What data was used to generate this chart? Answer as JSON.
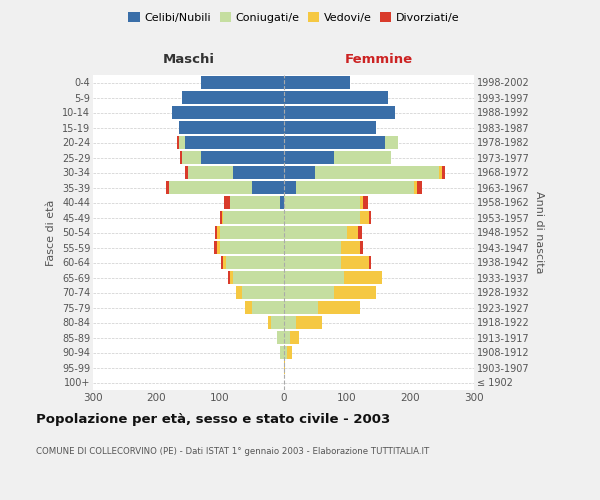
{
  "age_groups": [
    "100+",
    "95-99",
    "90-94",
    "85-89",
    "80-84",
    "75-79",
    "70-74",
    "65-69",
    "60-64",
    "55-59",
    "50-54",
    "45-49",
    "40-44",
    "35-39",
    "30-34",
    "25-29",
    "20-24",
    "15-19",
    "10-14",
    "5-9",
    "0-4"
  ],
  "birth_years": [
    "≤ 1902",
    "1903-1907",
    "1908-1912",
    "1913-1917",
    "1918-1922",
    "1923-1927",
    "1928-1932",
    "1933-1937",
    "1938-1942",
    "1943-1947",
    "1948-1952",
    "1953-1957",
    "1958-1962",
    "1963-1967",
    "1968-1972",
    "1973-1977",
    "1978-1982",
    "1983-1987",
    "1988-1992",
    "1993-1997",
    "1998-2002"
  ],
  "males": {
    "celibi": [
      0,
      0,
      0,
      0,
      0,
      0,
      0,
      0,
      0,
      0,
      0,
      0,
      5,
      50,
      80,
      130,
      155,
      165,
      175,
      160,
      130
    ],
    "coniugati": [
      0,
      0,
      5,
      10,
      20,
      50,
      65,
      80,
      90,
      100,
      100,
      95,
      80,
      130,
      70,
      30,
      10,
      0,
      0,
      0,
      0
    ],
    "vedovi": [
      0,
      0,
      0,
      0,
      5,
      10,
      10,
      5,
      5,
      5,
      5,
      2,
      0,
      0,
      0,
      0,
      0,
      0,
      0,
      0,
      0
    ],
    "divorziati": [
      0,
      0,
      0,
      0,
      0,
      0,
      0,
      2,
      3,
      5,
      3,
      3,
      8,
      5,
      5,
      3,
      2,
      0,
      0,
      0,
      0
    ]
  },
  "females": {
    "nubili": [
      0,
      0,
      0,
      0,
      0,
      0,
      0,
      0,
      0,
      0,
      0,
      0,
      0,
      20,
      50,
      80,
      160,
      145,
      175,
      165,
      105
    ],
    "coniugate": [
      0,
      0,
      5,
      10,
      20,
      55,
      80,
      95,
      90,
      90,
      100,
      120,
      120,
      185,
      195,
      90,
      20,
      0,
      0,
      0,
      0
    ],
    "vedove": [
      0,
      2,
      8,
      15,
      40,
      65,
      65,
      60,
      45,
      30,
      18,
      15,
      5,
      5,
      5,
      0,
      0,
      0,
      0,
      0,
      0
    ],
    "divorziate": [
      0,
      0,
      0,
      0,
      0,
      0,
      0,
      0,
      3,
      5,
      5,
      3,
      8,
      8,
      5,
      0,
      0,
      0,
      0,
      0,
      0
    ]
  },
  "colors": {
    "celibi": "#3a6ea8",
    "coniugati": "#c5dea0",
    "vedovi": "#f5c842",
    "divorziati": "#d93b2b"
  },
  "xlim": 300,
  "title": "Popolazione per età, sesso e stato civile - 2003",
  "subtitle": "COMUNE DI COLLECORVINO (PE) - Dati ISTAT 1° gennaio 2003 - Elaborazione TUTTITALIA.IT",
  "ylabel_left": "Fasce di età",
  "ylabel_right": "Anni di nascita",
  "xlabel_left": "Maschi",
  "xlabel_right": "Femmine",
  "bg_color": "#f0f0f0",
  "plot_bg": "#ffffff"
}
